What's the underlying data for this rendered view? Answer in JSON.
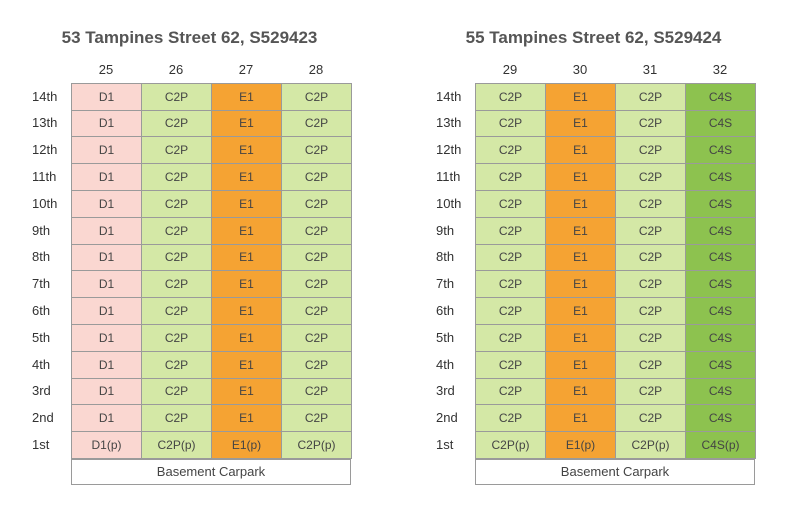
{
  "blocks": [
    {
      "title": "53 Tampines Street 62, S529423",
      "columns": [
        "25",
        "26",
        "27",
        "28"
      ],
      "unit_types": [
        "D1",
        "C2P",
        "E1",
        "C2P"
      ],
      "floors": [
        "14th",
        "13th",
        "12th",
        "11th",
        "10th",
        "9th",
        "8th",
        "7th",
        "6th",
        "5th",
        "4th",
        "3rd",
        "2nd",
        "1st"
      ],
      "ground_labels": [
        "D1(p)",
        "C2P(p)",
        "E1(p)",
        "C2P(p)"
      ],
      "basement": "Basement Carpark"
    },
    {
      "title": "55 Tampines Street 62, S529424",
      "columns": [
        "29",
        "30",
        "31",
        "32"
      ],
      "unit_types": [
        "C2P",
        "E1",
        "C2P",
        "C4S"
      ],
      "floors": [
        "14th",
        "13th",
        "12th",
        "11th",
        "10th",
        "9th",
        "8th",
        "7th",
        "6th",
        "5th",
        "4th",
        "3rd",
        "2nd",
        "1st"
      ],
      "ground_labels": [
        "C2P(p)",
        "E1(p)",
        "C2P(p)",
        "C4S(p)"
      ],
      "basement": "Basement Carpark"
    }
  ],
  "unit_colors": {
    "D1": "#fad7d1",
    "C2P": "#d4e8a6",
    "E1": "#f5a333",
    "C4S": "#8dc24f"
  }
}
